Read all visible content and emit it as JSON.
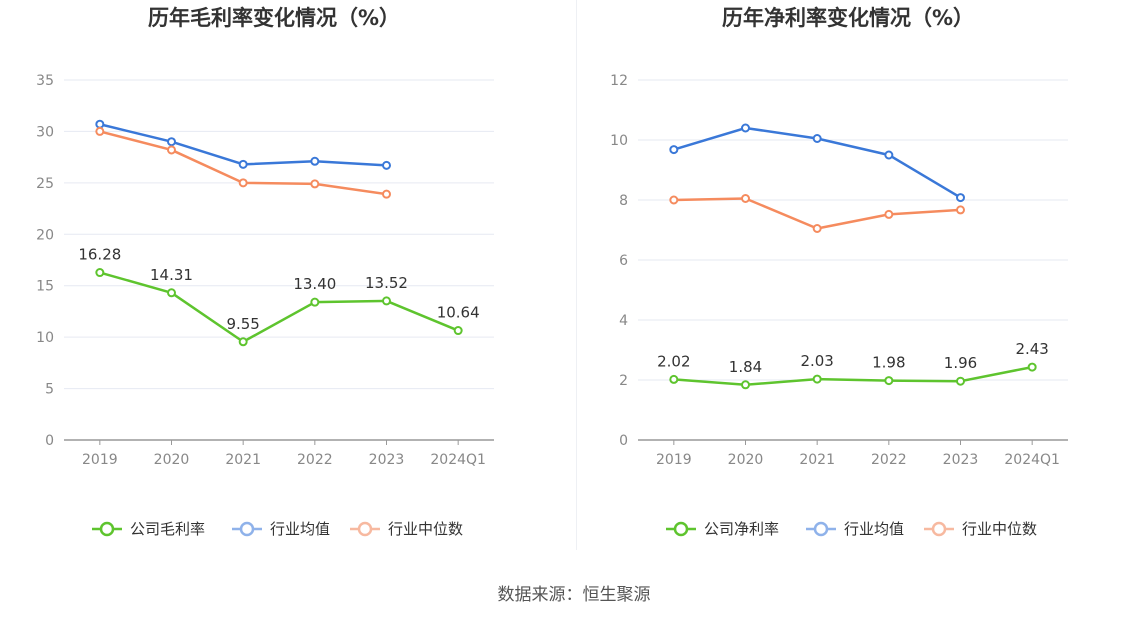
{
  "chart_data": [
    {
      "type": "line",
      "title": "历年毛利率变化情况（%）",
      "categories": [
        "2019",
        "2020",
        "2021",
        "2022",
        "2023",
        "2024Q1"
      ],
      "ylim": [
        0,
        35
      ],
      "yticks": [
        0,
        5,
        10,
        15,
        20,
        25,
        30,
        35
      ],
      "grid": true,
      "legend_position": "bottom",
      "series": [
        {
          "name": "公司毛利率",
          "color": "#5ec42e",
          "values": [
            16.28,
            14.31,
            9.55,
            13.4,
            13.52,
            10.64
          ],
          "labels": [
            "16.28",
            "14.31",
            "9.55",
            "13.40",
            "13.52",
            "10.64"
          ]
        },
        {
          "name": "行业均值",
          "color": "#3a78d8",
          "values": [
            30.7,
            29.0,
            26.8,
            27.1,
            26.7,
            null
          ]
        },
        {
          "name": "行业中位数",
          "color": "#f58b5e",
          "values": [
            30.0,
            28.2,
            25.0,
            24.9,
            23.9,
            null
          ]
        }
      ]
    },
    {
      "type": "line",
      "title": "历年净利率变化情况（%）",
      "categories": [
        "2019",
        "2020",
        "2021",
        "2022",
        "2023",
        "2024Q1"
      ],
      "ylim": [
        0,
        12
      ],
      "yticks": [
        0,
        2,
        4,
        6,
        8,
        10,
        12
      ],
      "grid": true,
      "legend_position": "bottom",
      "series": [
        {
          "name": "公司净利率",
          "color": "#5ec42e",
          "values": [
            2.02,
            1.84,
            2.03,
            1.98,
            1.96,
            2.43
          ],
          "labels": [
            "2.02",
            "1.84",
            "2.03",
            "1.98",
            "1.96",
            "2.43"
          ]
        },
        {
          "name": "行业均值",
          "color": "#3a78d8",
          "values": [
            9.68,
            10.4,
            10.05,
            9.5,
            8.08,
            null
          ]
        },
        {
          "name": "行业中位数",
          "color": "#f58b5e",
          "values": [
            8.0,
            8.05,
            7.05,
            7.52,
            7.67,
            null
          ]
        }
      ]
    }
  ],
  "source": "数据来源：恒生聚源"
}
